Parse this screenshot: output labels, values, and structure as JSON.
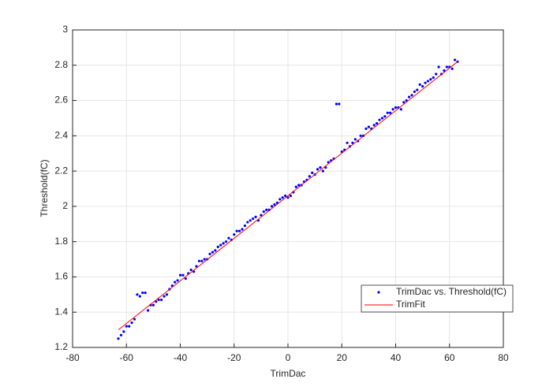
{
  "chart_data": {
    "type": "scatter",
    "xlabel": "TrimDac",
    "ylabel": "Threshold(fC)",
    "xlim": [
      -80,
      80
    ],
    "ylim": [
      1.2,
      3
    ],
    "xticks": [
      -80,
      -60,
      -40,
      -20,
      0,
      20,
      40,
      60,
      80
    ],
    "yticks": [
      1.2,
      1.4,
      1.6,
      1.8,
      2,
      2.2,
      2.4,
      2.6,
      2.8,
      3
    ],
    "grid": true,
    "legend": "lower right",
    "series": [
      {
        "name": "TrimDac vs. Threshold(fC)",
        "color": "#0000ff",
        "style": "points",
        "x": [
          -63,
          -62,
          -61,
          -60,
          -59,
          -58,
          -57,
          -56,
          -55,
          -54,
          -53,
          -52,
          -51,
          -50,
          -49,
          -48,
          -47,
          -46,
          -45,
          -44,
          -43,
          -42,
          -41,
          -40,
          -39,
          -38,
          -37,
          -36,
          -35,
          -34,
          -33,
          -32,
          -31,
          -30,
          -29,
          -28,
          -27,
          -26,
          -25,
          -24,
          -23,
          -22,
          -21,
          -20,
          -19,
          -18,
          -17,
          -16,
          -15,
          -14,
          -13,
          -12,
          -11,
          -10,
          -9,
          -8,
          -7,
          -6,
          -5,
          -4,
          -3,
          -2,
          -1,
          0,
          1,
          2,
          3,
          4,
          5,
          6,
          7,
          8,
          9,
          10,
          11,
          12,
          13,
          14,
          15,
          16,
          17,
          18,
          19,
          20,
          21,
          22,
          23,
          24,
          25,
          26,
          27,
          28,
          29,
          30,
          31,
          32,
          33,
          34,
          35,
          36,
          37,
          38,
          39,
          40,
          41,
          42,
          43,
          44,
          45,
          46,
          47,
          48,
          49,
          50,
          51,
          52,
          53,
          54,
          55,
          56,
          57,
          58,
          59,
          60,
          61,
          62,
          63
        ],
        "values": [
          1.25,
          1.27,
          1.29,
          1.32,
          1.32,
          1.34,
          1.36,
          1.5,
          1.49,
          1.51,
          1.51,
          1.41,
          1.44,
          1.44,
          1.46,
          1.47,
          1.47,
          1.49,
          1.5,
          1.53,
          1.55,
          1.57,
          1.58,
          1.61,
          1.61,
          1.59,
          1.62,
          1.64,
          1.63,
          1.66,
          1.69,
          1.69,
          1.7,
          1.7,
          1.73,
          1.74,
          1.75,
          1.77,
          1.78,
          1.79,
          1.8,
          1.82,
          1.81,
          1.84,
          1.86,
          1.86,
          1.87,
          1.89,
          1.91,
          1.92,
          1.93,
          1.94,
          1.92,
          1.95,
          1.97,
          1.98,
          1.98,
          2.0,
          2.01,
          2.02,
          2.04,
          2.05,
          2.06,
          2.05,
          2.06,
          2.08,
          2.11,
          2.12,
          2.12,
          2.14,
          2.15,
          2.17,
          2.19,
          2.18,
          2.21,
          2.22,
          2.2,
          2.22,
          2.25,
          2.26,
          2.27,
          2.58,
          2.58,
          2.31,
          2.32,
          2.36,
          2.34,
          2.36,
          2.38,
          2.37,
          2.4,
          2.4,
          2.44,
          2.45,
          2.44,
          2.46,
          2.47,
          2.49,
          2.5,
          2.51,
          2.53,
          2.53,
          2.55,
          2.56,
          2.56,
          2.55,
          2.59,
          2.6,
          2.62,
          2.63,
          2.65,
          2.66,
          2.69,
          2.68,
          2.7,
          2.71,
          2.72,
          2.73,
          2.75,
          2.79,
          2.75,
          2.77,
          2.79,
          2.79,
          2.78,
          2.83,
          2.82
        ]
      },
      {
        "name": "TrimFit",
        "color": "#ff0000",
        "style": "line",
        "x": [
          -63,
          63
        ],
        "values": [
          1.3,
          2.82
        ]
      }
    ]
  }
}
